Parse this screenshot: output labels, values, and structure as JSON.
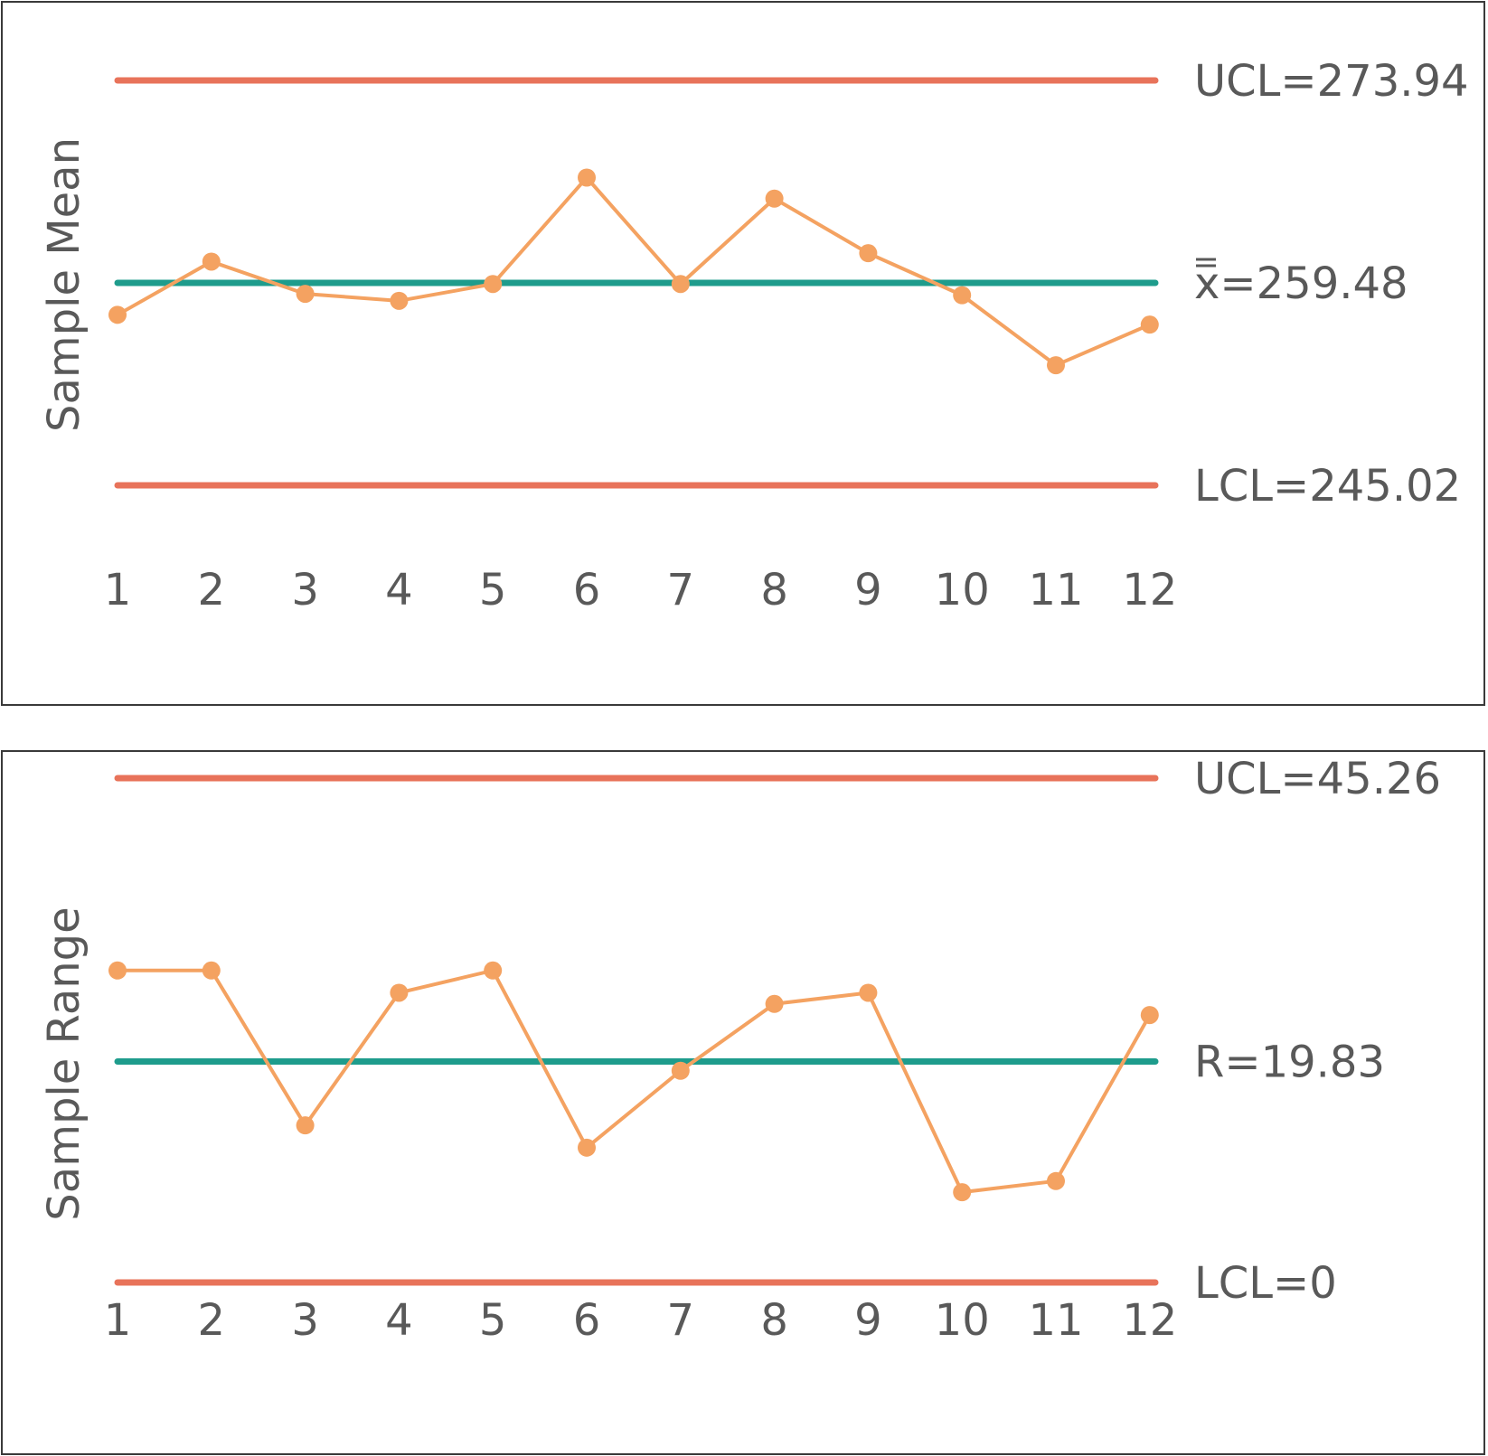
{
  "chart_data": [
    {
      "type": "line",
      "id": "mean",
      "ylabel": "Sample Mean",
      "x": [
        1,
        2,
        3,
        4,
        5,
        6,
        7,
        8,
        9,
        10,
        11,
        12
      ],
      "values": [
        257.2,
        261.0,
        258.7,
        258.2,
        259.4,
        267.0,
        259.4,
        265.5,
        261.6,
        258.6,
        253.6,
        256.5
      ],
      "ylim": [
        240.0,
        277.5
      ],
      "control_lines": {
        "ucl": {
          "label": "UCL=273.94",
          "value": 273.94
        },
        "center": {
          "symbol": "x",
          "label": "=259.48",
          "value": 259.48
        },
        "lcl": {
          "label": "LCL=245.02",
          "value": 245.02
        }
      }
    },
    {
      "type": "line",
      "id": "range",
      "ylabel": "Sample Range",
      "x": [
        1,
        2,
        3,
        4,
        5,
        6,
        7,
        8,
        9,
        10,
        11,
        12
      ],
      "values": [
        28.0,
        28.0,
        14.1,
        26.0,
        28.0,
        12.1,
        19.0,
        25.0,
        26.0,
        8.1,
        9.1,
        24.0
      ],
      "ylim": [
        0,
        45.26
      ],
      "control_lines": {
        "ucl": {
          "label": "UCL=45.26",
          "value": 45.26
        },
        "center": {
          "label": "R=19.83",
          "value": 19.83
        },
        "lcl": {
          "label": "LCL=0",
          "value": 0
        }
      }
    }
  ],
  "colors": {
    "control_limit": "#E8735A",
    "center_line": "#1E9C8C",
    "data_series": "#F4A261",
    "text": "#595959",
    "frame": "#3a3a3a"
  }
}
